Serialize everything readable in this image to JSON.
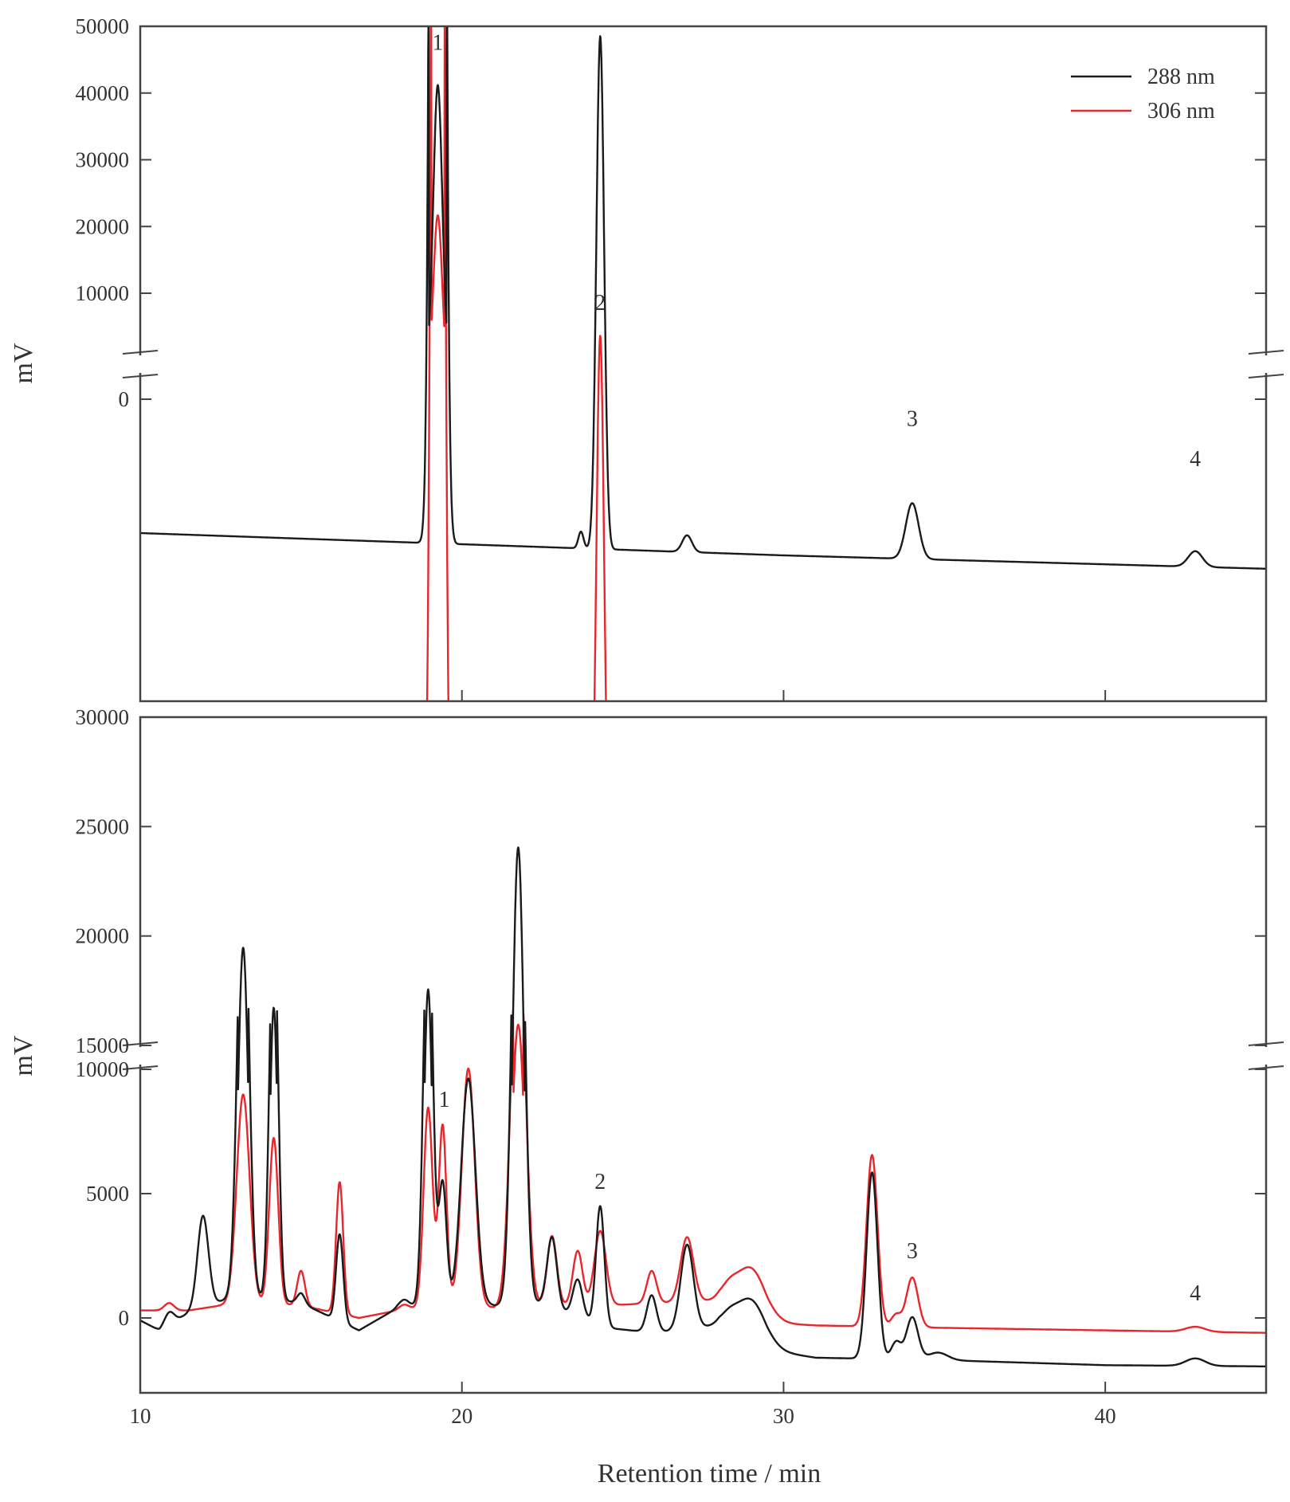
{
  "chart_data": [
    {
      "type": "line",
      "panel": "top",
      "ylabel": "mV",
      "xlim": [
        10,
        45
      ],
      "y_ticks_upper": [
        "10000",
        "20000",
        "30000",
        "40000",
        "50000"
      ],
      "y_ticks_lower": [
        "0"
      ],
      "axis_break": true,
      "legend_position": "top-right",
      "series": [
        {
          "name": "288 nm",
          "color": "#1a1a1a",
          "baseline": [
            [
              10,
              -1200
            ],
            [
              20,
              -1300
            ],
            [
              30,
              -1400
            ],
            [
              45,
              -1520
            ]
          ],
          "peaks": [
            [
              19.25,
              42500,
              0.14
            ],
            [
              23.7,
              150,
              0.08
            ],
            [
              24.3,
              4600,
              0.12
            ],
            [
              27.0,
              150,
              0.15
            ],
            [
              34.0,
              500,
              0.2
            ],
            [
              42.8,
              140,
              0.22
            ]
          ]
        },
        {
          "name": "306 nm",
          "color": "#e8262b",
          "baseline": [
            [
              10,
              -4300
            ],
            [
              20,
              -4320
            ],
            [
              30,
              -4340
            ],
            [
              45,
              -4310
            ]
          ],
          "peaks": [
            [
              19.25,
              26000,
              0.14
            ],
            [
              23.7,
              180,
              0.08
            ],
            [
              24.3,
              4900,
              0.12
            ],
            [
              27.0,
              160,
              0.15
            ],
            [
              34.0,
              360,
              0.2
            ],
            [
              42.8,
              200,
              0.22
            ]
          ]
        }
      ],
      "peak_labels": [
        {
          "label": "1",
          "x": 19.25,
          "y": 46500
        },
        {
          "label": "2",
          "x": 24.3,
          "y": 7500
        },
        {
          "label": "3",
          "x": 34.0,
          "y": -240
        },
        {
          "label": "4",
          "x": 42.8,
          "y": -600
        }
      ]
    },
    {
      "type": "line",
      "panel": "bottom",
      "ylabel": "mV",
      "xlabel": "Retention time / min",
      "xlim": [
        10,
        45
      ],
      "x_ticks": [
        "10",
        "20",
        "30",
        "40"
      ],
      "y_ticks_upper": [
        "15000",
        "20000",
        "25000",
        "30000"
      ],
      "y_ticks_lower": [
        "0",
        "5000",
        "10000"
      ],
      "axis_break": true,
      "series": [
        {
          "name": "288 nm",
          "color": "#1a1a1a",
          "baseline": [
            [
              10,
              -100
            ],
            [
              10.6,
              -500
            ],
            [
              11.5,
              200
            ],
            [
              13,
              900
            ],
            [
              15,
              600
            ],
            [
              16.8,
              -500
            ],
            [
              18,
              400
            ],
            [
              19.8,
              700
            ],
            [
              21,
              500
            ],
            [
              22.5,
              600
            ],
            [
              24.5,
              -400
            ],
            [
              26,
              -600
            ],
            [
              28,
              -300
            ],
            [
              29.5,
              -1300
            ],
            [
              31,
              -1600
            ],
            [
              35,
              -1700
            ],
            [
              40,
              -1900
            ],
            [
              45,
              -1950
            ]
          ],
          "peaks": [
            [
              10.9,
              500,
              0.15
            ],
            [
              11.95,
              3700,
              0.17
            ],
            [
              13.2,
              18600,
              0.17
            ],
            [
              14.15,
              16000,
              0.13
            ],
            [
              15.0,
              400,
              0.12
            ],
            [
              16.2,
              3500,
              0.11
            ],
            [
              18.2,
              300,
              0.15
            ],
            [
              18.95,
              17000,
              0.14
            ],
            [
              19.4,
              4800,
              0.12
            ],
            [
              20.2,
              9000,
              0.22
            ],
            [
              21.75,
              23500,
              0.18
            ],
            [
              22.8,
              2800,
              0.15
            ],
            [
              23.6,
              1500,
              0.15
            ],
            [
              24.3,
              4800,
              0.13
            ],
            [
              25.9,
              1500,
              0.15
            ],
            [
              27.0,
              3400,
              0.2
            ],
            [
              28.3,
              400,
              0.25
            ],
            [
              29.0,
              1700,
              0.45
            ],
            [
              32.75,
              7500,
              0.17
            ],
            [
              33.5,
              700,
              0.15
            ],
            [
              34.0,
              1700,
              0.18
            ],
            [
              34.8,
              300,
              0.3
            ],
            [
              42.8,
              300,
              0.3
            ]
          ]
        },
        {
          "name": "306 nm",
          "color": "#e8262b",
          "baseline": [
            [
              10,
              300
            ],
            [
              11.5,
              300
            ],
            [
              13,
              600
            ],
            [
              15,
              500
            ],
            [
              16.8,
              0
            ],
            [
              18,
              300
            ],
            [
              19.8,
              600
            ],
            [
              21,
              400
            ],
            [
              22.5,
              500
            ],
            [
              24.5,
              500
            ],
            [
              26,
              600
            ],
            [
              28,
              700
            ],
            [
              29.5,
              -200
            ],
            [
              31,
              -300
            ],
            [
              35,
              -400
            ],
            [
              40,
              -500
            ],
            [
              45,
              -600
            ]
          ],
          "peaks": [
            [
              10.9,
              300,
              0.15
            ],
            [
              13.2,
              8400,
              0.2
            ],
            [
              14.15,
              6700,
              0.14
            ],
            [
              15.0,
              1400,
              0.12
            ],
            [
              16.2,
              5300,
              0.11
            ],
            [
              18.2,
              200,
              0.15
            ],
            [
              18.95,
              8000,
              0.14
            ],
            [
              19.4,
              7200,
              0.12
            ],
            [
              20.2,
              9500,
              0.2
            ],
            [
              21.75,
              15500,
              0.22
            ],
            [
              22.8,
              2800,
              0.15
            ],
            [
              23.6,
              2200,
              0.15
            ],
            [
              24.3,
              3000,
              0.18
            ],
            [
              25.9,
              1300,
              0.15
            ],
            [
              27.0,
              2600,
              0.2
            ],
            [
              28.3,
              500,
              0.25
            ],
            [
              29.0,
              1900,
              0.45
            ],
            [
              32.75,
              6900,
              0.17
            ],
            [
              33.5,
              500,
              0.15
            ],
            [
              34.0,
              2000,
              0.18
            ],
            [
              42.8,
              200,
              0.3
            ]
          ]
        }
      ],
      "peak_labels": [
        {
          "label": "1",
          "x": 19.45,
          "y": 8500
        },
        {
          "label": "2",
          "x": 24.3,
          "y": 5200
        },
        {
          "label": "3",
          "x": 34.0,
          "y": 2400
        },
        {
          "label": "4",
          "x": 42.8,
          "y": 700
        }
      ]
    }
  ]
}
